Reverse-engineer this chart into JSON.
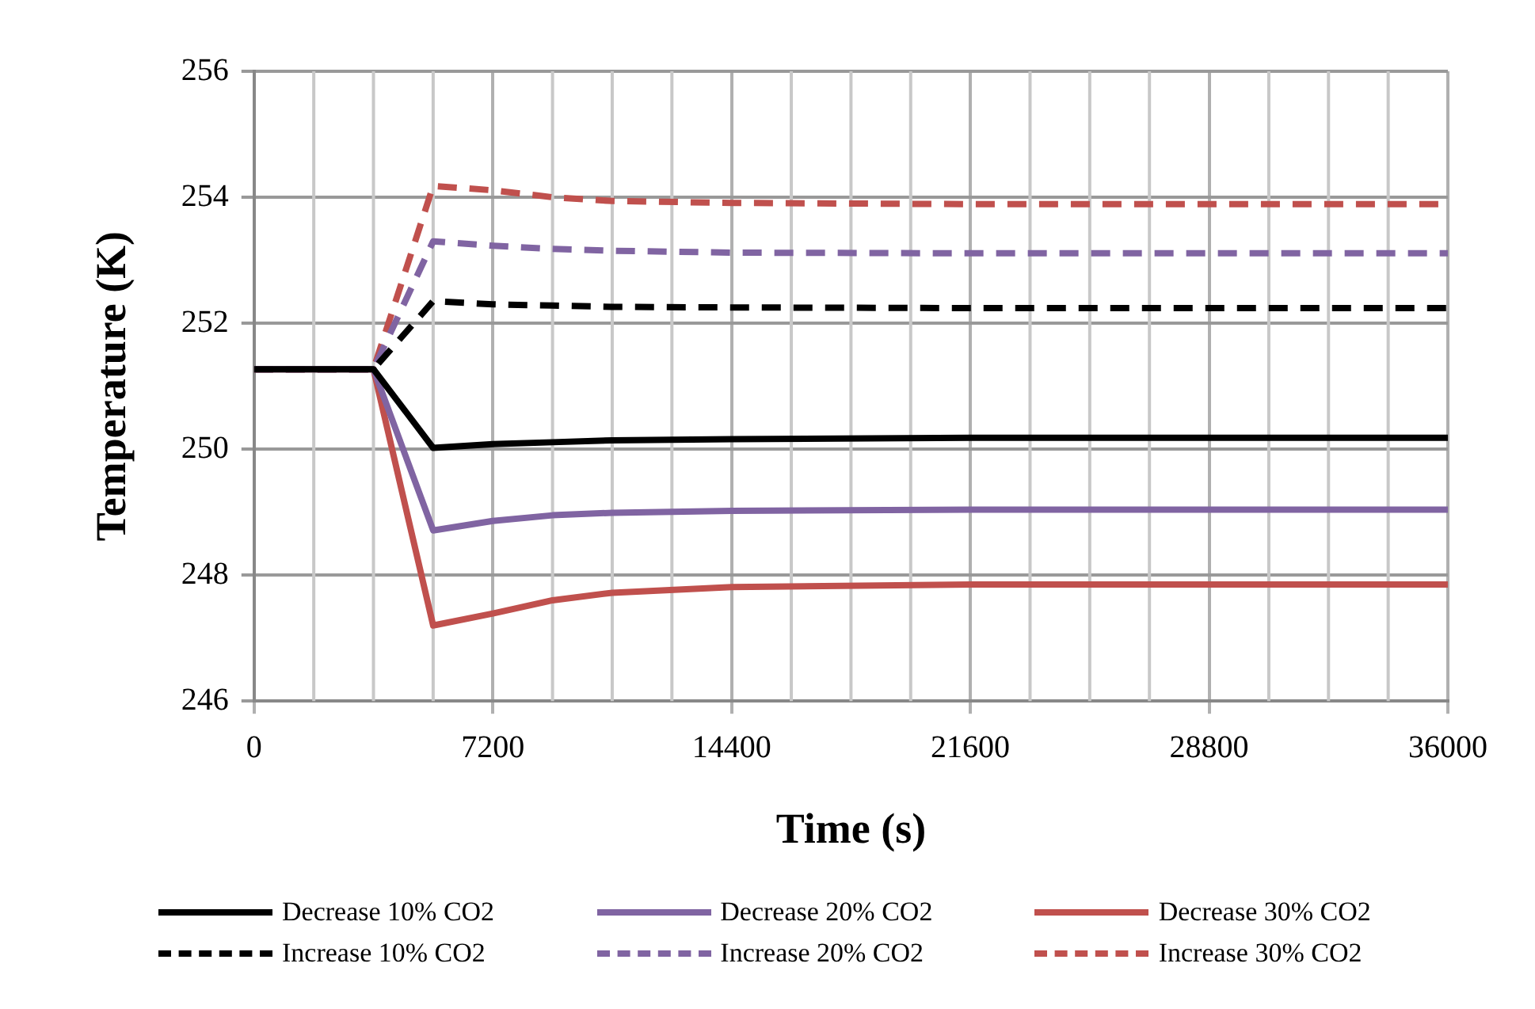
{
  "chart_data": {
    "type": "line",
    "xlabel": "Time (s)",
    "ylabel": "Temperature (K)",
    "x": [
      0,
      1800,
      3600,
      5400,
      7200,
      9000,
      10800,
      14400,
      21600,
      36000
    ],
    "xlim": [
      0,
      36000
    ],
    "xticks": [
      0,
      7200,
      14400,
      21600,
      28800,
      36000
    ],
    "ylim": [
      246,
      256
    ],
    "yticks": [
      246,
      248,
      250,
      252,
      254,
      256
    ],
    "grid": true,
    "legend": "bottom",
    "marker": "none",
    "series": [
      {
        "name": "Decrease 10% CO2",
        "color": "#000000",
        "line_style": "solid",
        "values": [
          251.27,
          251.27,
          251.27,
          250.02,
          250.08,
          250.11,
          250.14,
          250.16,
          250.18,
          250.18
        ]
      },
      {
        "name": "Decrease 20% CO2",
        "color": "#8064a2",
        "line_style": "solid",
        "values": [
          251.27,
          251.27,
          251.27,
          248.71,
          248.86,
          248.95,
          248.99,
          249.02,
          249.04,
          249.04
        ]
      },
      {
        "name": "Decrease 30% CO2",
        "color": "#c0504d",
        "line_style": "solid",
        "values": [
          251.27,
          251.27,
          251.27,
          247.2,
          247.39,
          247.6,
          247.72,
          247.81,
          247.85,
          247.85
        ]
      },
      {
        "name": "Increase 10% CO2",
        "color": "#000000",
        "line_style": "dashed",
        "values": [
          251.27,
          251.27,
          251.27,
          252.35,
          252.3,
          252.28,
          252.26,
          252.25,
          252.24,
          252.24
        ]
      },
      {
        "name": "Increase 20% CO2",
        "color": "#8064a2",
        "line_style": "dashed",
        "values": [
          251.27,
          251.27,
          251.27,
          253.3,
          253.23,
          253.18,
          253.15,
          253.12,
          253.11,
          253.11
        ]
      },
      {
        "name": "Increase 30% CO2",
        "color": "#c0504d",
        "line_style": "dashed",
        "values": [
          251.27,
          251.27,
          251.27,
          254.18,
          254.11,
          254.0,
          253.94,
          253.91,
          253.89,
          253.89
        ]
      }
    ]
  }
}
